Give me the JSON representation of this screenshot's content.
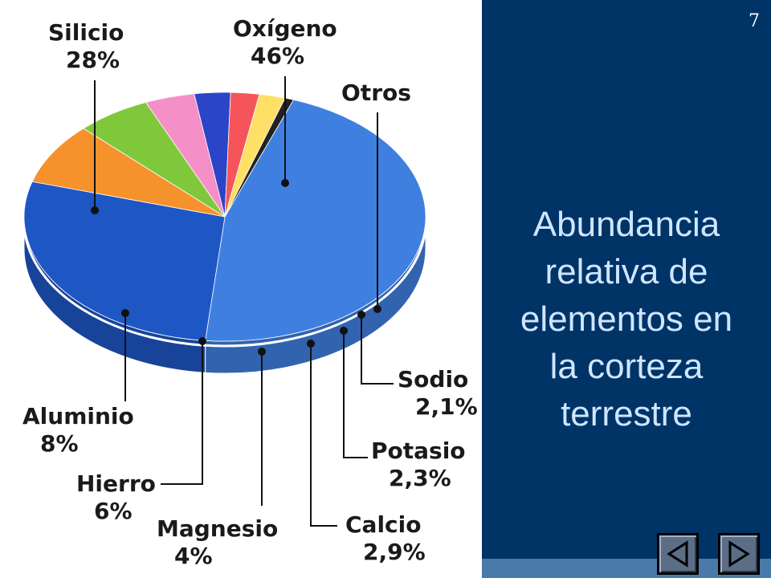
{
  "page_number": "7",
  "title_lines": [
    "Abundancia",
    "relativa de",
    "elementos en",
    "la corteza",
    "terrestre"
  ],
  "chart_data": {
    "type": "pie",
    "title": "",
    "slices": [
      {
        "name": "Oxígeno",
        "label": "46%",
        "value": 46,
        "color": "#3f7fe0"
      },
      {
        "name": "Silicio",
        "label": "28%",
        "value": 28,
        "color": "#1e56c4"
      },
      {
        "name": "Aluminio",
        "label": "8%",
        "value": 8,
        "color": "#f5922c"
      },
      {
        "name": "Hierro",
        "label": "6%",
        "value": 6,
        "color": "#7fc83c"
      },
      {
        "name": "Magnesio",
        "label": "4%",
        "value": 4,
        "color": "#f58fc8"
      },
      {
        "name": "Calcio",
        "label": "2,9%",
        "value": 2.9,
        "color": "#2b45c8"
      },
      {
        "name": "Potasio",
        "label": "2,3%",
        "value": 2.3,
        "color": "#f5555a"
      },
      {
        "name": "Sodio",
        "label": "2,1%",
        "value": 2.1,
        "color": "#ffe066"
      },
      {
        "name": "Otros",
        "label": "",
        "value": 0.7,
        "color": "#222222"
      }
    ]
  },
  "nav": {
    "prev_icon": "triangle-left-icon",
    "next_icon": "triangle-right-icon",
    "button_color": "#5b6e86"
  }
}
